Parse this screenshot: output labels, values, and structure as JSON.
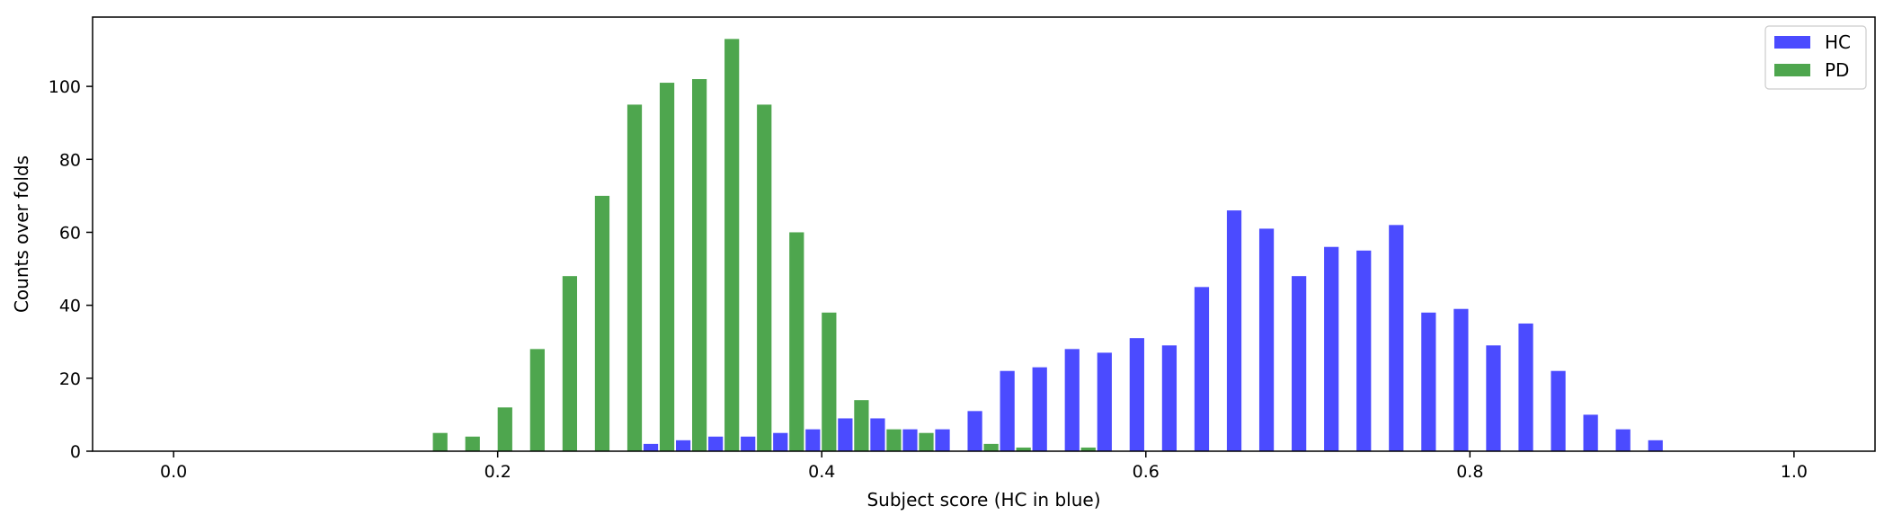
{
  "chart_data": {
    "type": "bar",
    "title": "",
    "xlabel": "Subject score (HC in blue)",
    "ylabel": "Counts over folds",
    "xlim": [
      -0.05,
      1.05
    ],
    "ylim": [
      0,
      119
    ],
    "xticks": [
      "0.0",
      "0.2",
      "0.4",
      "0.6",
      "0.8",
      "1.0"
    ],
    "yticks": [
      "0",
      "20",
      "40",
      "60",
      "80",
      "100"
    ],
    "legend_position": "top-right",
    "bin_width": 0.02,
    "x": [
      0.16,
      0.18,
      0.2,
      0.22,
      0.24,
      0.26,
      0.28,
      0.3,
      0.32,
      0.34,
      0.36,
      0.38,
      0.4,
      0.42,
      0.44,
      0.46,
      0.48,
      0.5,
      0.52,
      0.54,
      0.56,
      0.58,
      0.6,
      0.62,
      0.64,
      0.66,
      0.68,
      0.7,
      0.72,
      0.74,
      0.76,
      0.78,
      0.8,
      0.82,
      0.84,
      0.86,
      0.88,
      0.9,
      0.92
    ],
    "series": [
      {
        "name": "HC",
        "color": "#4b4bff",
        "values": [
          0,
          0,
          0,
          0,
          0,
          0,
          0,
          2,
          3,
          4,
          4,
          5,
          6,
          9,
          9,
          6,
          6,
          11,
          22,
          23,
          28,
          27,
          31,
          29,
          45,
          66,
          61,
          48,
          56,
          55,
          62,
          38,
          39,
          29,
          35,
          22,
          10,
          6,
          3
        ]
      },
      {
        "name": "PD",
        "color": "#4ea64e",
        "values": [
          5,
          4,
          12,
          28,
          48,
          70,
          95,
          101,
          102,
          113,
          95,
          60,
          38,
          14,
          6,
          5,
          0,
          2,
          1,
          0,
          1,
          0,
          0,
          0,
          0,
          0,
          0,
          0,
          0,
          0,
          0,
          0,
          0,
          0,
          0,
          0,
          0,
          0,
          0
        ]
      }
    ]
  }
}
